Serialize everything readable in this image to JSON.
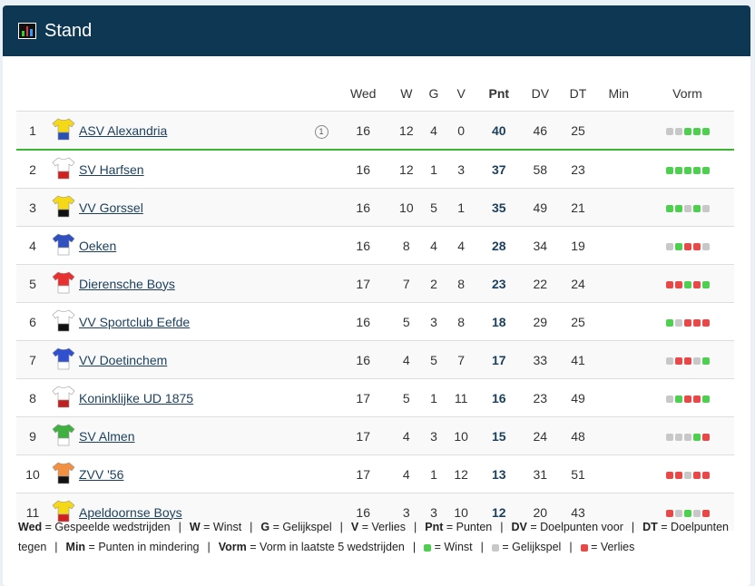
{
  "header": {
    "title": "Stand",
    "icon": "bar-chart-icon"
  },
  "columns": [
    "Wed",
    "W",
    "G",
    "V",
    "Pnt",
    "DV",
    "DT",
    "Min",
    "Vorm"
  ],
  "rows": [
    {
      "pos": "1",
      "team": "ASV Alexandria",
      "badge": "1",
      "shirt": [
        "#f5d816",
        "#2a4fb5"
      ],
      "wed": "16",
      "w": "12",
      "g": "4",
      "v": "0",
      "pnt": "40",
      "dv": "46",
      "dt": "25",
      "min": "",
      "form": [
        "G",
        "G",
        "W",
        "W",
        "W"
      ]
    },
    {
      "pos": "2",
      "team": "SV Harfsen",
      "shirt": [
        "#ffffff",
        "#d02020"
      ],
      "wed": "16",
      "w": "12",
      "g": "1",
      "v": "3",
      "pnt": "37",
      "dv": "58",
      "dt": "23",
      "min": "",
      "form": [
        "W",
        "W",
        "W",
        "W",
        "W"
      ]
    },
    {
      "pos": "3",
      "team": "VV Gorssel",
      "shirt": [
        "#f5d816",
        "#111111"
      ],
      "wed": "16",
      "w": "10",
      "g": "5",
      "v": "1",
      "pnt": "35",
      "dv": "49",
      "dt": "21",
      "min": "",
      "form": [
        "W",
        "W",
        "G",
        "W",
        "G"
      ]
    },
    {
      "pos": "4",
      "team": "Oeken",
      "shirt": [
        "#3050c0",
        "#ffffff"
      ],
      "wed": "16",
      "w": "8",
      "g": "4",
      "v": "4",
      "pnt": "28",
      "dv": "34",
      "dt": "19",
      "min": "",
      "form": [
        "G",
        "W",
        "L",
        "L",
        "G"
      ]
    },
    {
      "pos": "5",
      "team": "Dierensche Boys",
      "shirt": [
        "#e83030",
        "#ffffff"
      ],
      "wed": "17",
      "w": "7",
      "g": "2",
      "v": "8",
      "pnt": "23",
      "dv": "22",
      "dt": "24",
      "min": "",
      "form": [
        "L",
        "L",
        "W",
        "L",
        "W"
      ]
    },
    {
      "pos": "6",
      "team": "VV Sportclub Eefde",
      "shirt": [
        "#ffffff",
        "#111111"
      ],
      "wed": "16",
      "w": "5",
      "g": "3",
      "v": "8",
      "pnt": "18",
      "dv": "29",
      "dt": "25",
      "min": "",
      "form": [
        "W",
        "G",
        "L",
        "L",
        "L"
      ]
    },
    {
      "pos": "7",
      "team": "VV Doetinchem",
      "shirt": [
        "#3050d0",
        "#ffffff"
      ],
      "wed": "16",
      "w": "4",
      "g": "5",
      "v": "7",
      "pnt": "17",
      "dv": "33",
      "dt": "41",
      "min": "",
      "form": [
        "G",
        "L",
        "L",
        "G",
        "W"
      ]
    },
    {
      "pos": "8",
      "team": "Koninklijke UD 1875",
      "shirt": [
        "#ffffff",
        "#c02020"
      ],
      "wed": "17",
      "w": "5",
      "g": "1",
      "v": "11",
      "pnt": "16",
      "dv": "23",
      "dt": "49",
      "min": "",
      "form": [
        "G",
        "W",
        "L",
        "L",
        "W"
      ]
    },
    {
      "pos": "9",
      "team": "SV Almen",
      "shirt": [
        "#40b040",
        "#ffffff"
      ],
      "wed": "17",
      "w": "4",
      "g": "3",
      "v": "10",
      "pnt": "15",
      "dv": "24",
      "dt": "48",
      "min": "",
      "form": [
        "G",
        "G",
        "G",
        "W",
        "L"
      ]
    },
    {
      "pos": "10",
      "team": "ZVV '56",
      "shirt": [
        "#f09040",
        "#111111"
      ],
      "wed": "17",
      "w": "4",
      "g": "1",
      "v": "12",
      "pnt": "13",
      "dv": "31",
      "dt": "51",
      "min": "",
      "form": [
        "L",
        "L",
        "G",
        "L",
        "L"
      ]
    },
    {
      "pos": "11",
      "team": "Apeldoornse Boys",
      "shirt": [
        "#f5d816",
        "#d02020"
      ],
      "wed": "16",
      "w": "3",
      "g": "3",
      "v": "10",
      "pnt": "12",
      "dv": "20",
      "dt": "43",
      "min": "",
      "form": [
        "L",
        "G",
        "W",
        "G",
        "L"
      ]
    }
  ],
  "legend": [
    {
      "k": "Wed",
      "t": "= Gespeelde wedstrijden"
    },
    {
      "k": "W",
      "t": "= Winst"
    },
    {
      "k": "G",
      "t": "= Gelijkspel"
    },
    {
      "k": "V",
      "t": "= Verlies"
    },
    {
      "k": "Pnt",
      "t": "= Punten"
    },
    {
      "k": "DV",
      "t": "= Doelpunten voor"
    },
    {
      "k": "DT",
      "t": "= Doelpunten tegen"
    },
    {
      "k": "Min",
      "t": "= Punten in mindering"
    },
    {
      "k": "Vorm",
      "t": "= Vorm in laatste 5 wedstrijden"
    }
  ],
  "legend_dots": [
    {
      "c": "W",
      "t": "= Winst"
    },
    {
      "c": "G",
      "t": "= Gelijkspel"
    },
    {
      "c": "L",
      "t": "= Verlies"
    }
  ],
  "colors": {
    "win": "#4fcf4f",
    "draw": "#c8c8c8",
    "loss": "#e84848",
    "header": "#0d3753"
  }
}
